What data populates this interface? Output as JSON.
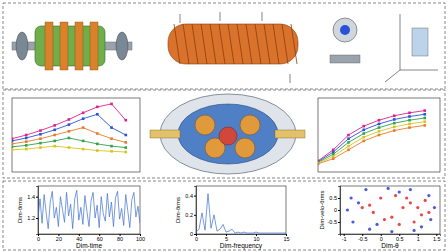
{
  "chart_data": [
    {
      "type": "line",
      "marker": "square",
      "tick_labels": false,
      "x": [
        0,
        1,
        2,
        3,
        4,
        5,
        6,
        7,
        8
      ],
      "xlim": [
        0,
        9
      ],
      "ylim": [
        0,
        1
      ],
      "series": [
        {
          "color": "#e0218a",
          "values": [
            0.45,
            0.5,
            0.56,
            0.63,
            0.71,
            0.8,
            0.88,
            0.92,
            0.7
          ]
        },
        {
          "color": "#2a52d6",
          "values": [
            0.42,
            0.46,
            0.51,
            0.57,
            0.64,
            0.72,
            0.78,
            0.6,
            0.5
          ]
        },
        {
          "color": "#e87a2a",
          "values": [
            0.38,
            0.41,
            0.45,
            0.5,
            0.55,
            0.6,
            0.52,
            0.45,
            0.4
          ]
        },
        {
          "color": "#2fa34a",
          "values": [
            0.34,
            0.36,
            0.39,
            0.42,
            0.46,
            0.42,
            0.38,
            0.35,
            0.33
          ]
        },
        {
          "color": "#d8c41c",
          "values": [
            0.3,
            0.31,
            0.33,
            0.35,
            0.33,
            0.31,
            0.29,
            0.28,
            0.27
          ]
        }
      ]
    },
    {
      "type": "line",
      "marker": "square",
      "tick_labels": false,
      "x": [
        0,
        1,
        2,
        3,
        4,
        5,
        6,
        7
      ],
      "xlim": [
        0,
        8
      ],
      "ylim": [
        0,
        1
      ],
      "series": [
        {
          "color": "#e0218a",
          "values": [
            0.15,
            0.3,
            0.5,
            0.62,
            0.7,
            0.76,
            0.8,
            0.83
          ]
        },
        {
          "color": "#2a52d6",
          "values": [
            0.14,
            0.27,
            0.45,
            0.57,
            0.65,
            0.71,
            0.75,
            0.78
          ]
        },
        {
          "color": "#2fa34a",
          "values": [
            0.13,
            0.24,
            0.4,
            0.52,
            0.6,
            0.66,
            0.7,
            0.73
          ]
        },
        {
          "color": "#d8c41c",
          "values": [
            0.12,
            0.21,
            0.35,
            0.47,
            0.55,
            0.61,
            0.65,
            0.68
          ]
        },
        {
          "color": "#e87a2a",
          "values": [
            0.11,
            0.18,
            0.3,
            0.42,
            0.5,
            0.56,
            0.6,
            0.63
          ]
        }
      ]
    },
    {
      "type": "line",
      "xlabel": "Dim-time",
      "ylabel": "Dim-θrms",
      "x": [
        0,
        2,
        4,
        6,
        8,
        10,
        12,
        14,
        16,
        18,
        20,
        22,
        24,
        26,
        28,
        30,
        32,
        34,
        36,
        38,
        40,
        42,
        44,
        46,
        48,
        50,
        52,
        54,
        56,
        58,
        60,
        62,
        64,
        66,
        68,
        70,
        72,
        74,
        76,
        78,
        80,
        82,
        84,
        86,
        88,
        90,
        92,
        94,
        96,
        98,
        100
      ],
      "xlim": [
        0,
        100
      ],
      "ylim": [
        1.05,
        1.5
      ],
      "xticks": [
        0,
        20,
        40,
        60,
        80,
        100
      ],
      "yticks": [
        1.2,
        1.4
      ],
      "series": [
        {
          "color": "#3d6fd1",
          "values": [
            1.2,
            1.38,
            1.15,
            1.42,
            1.25,
            1.1,
            1.35,
            1.45,
            1.2,
            1.3,
            1.12,
            1.4,
            1.28,
            1.16,
            1.44,
            1.22,
            1.33,
            1.1,
            1.38,
            1.46,
            1.18,
            1.3,
            1.14,
            1.41,
            1.26,
            1.12,
            1.36,
            1.44,
            1.2,
            1.32,
            1.11,
            1.4,
            1.24,
            1.17,
            1.43,
            1.21,
            1.35,
            1.12,
            1.39,
            1.45,
            1.19,
            1.29,
            1.13,
            1.42,
            1.27,
            1.11,
            1.37,
            1.44,
            1.21,
            1.31,
            1.15
          ]
        }
      ]
    },
    {
      "type": "line",
      "xlabel": "Dim-frequency",
      "ylabel": "Dim-θrms",
      "x": [
        0,
        0.5,
        1,
        1.5,
        2,
        2.5,
        3,
        3.5,
        4,
        4.5,
        5,
        5.5,
        6,
        6.5,
        7,
        7.5,
        8,
        8.5,
        9,
        9.5,
        10,
        10.5,
        11,
        11.5,
        12,
        12.5,
        13,
        13.5,
        14,
        14.5,
        15
      ],
      "xlim": [
        0,
        15
      ],
      "ylim": [
        0,
        0.5
      ],
      "xticks": [
        0,
        5,
        10,
        15
      ],
      "yticks": [
        0,
        0.2,
        0.4
      ],
      "series": [
        {
          "color": "#3d6fd1",
          "values": [
            0.02,
            0.05,
            0.22,
            0.04,
            0.42,
            0.06,
            0.2,
            0.03,
            0.05,
            0.1,
            0.02,
            0.03,
            0.05,
            0.01,
            0.02,
            0.01,
            0.02,
            0.01,
            0.01,
            0.01,
            0.02,
            0.01,
            0.01,
            0.01,
            0.01,
            0.01,
            0.01,
            0.01,
            0.01,
            0.01,
            0.01
          ]
        }
      ]
    },
    {
      "type": "scatter",
      "xlabel": "Dim-θ",
      "ylabel": "Dim-velo-θrms",
      "xlim": [
        -1.1,
        1.6
      ],
      "ylim": [
        -1,
        1
      ],
      "xticks": [
        -1,
        -0.5,
        0,
        0.5,
        1,
        1.5
      ],
      "yticks": [
        -0.5,
        0,
        0.5
      ],
      "series": [
        {
          "color": "#2a3fd6",
          "x": [
            -0.9,
            -0.8,
            -0.4,
            0.2,
            0.8,
            1.3,
            1.45,
            1.35,
            0.9,
            0.3,
            -0.3,
            -0.75,
            -0.6,
            1.1,
            0.5,
            -0.1
          ],
          "values": [
            0,
            0.5,
            0.85,
            0.9,
            0.85,
            0.6,
            0.1,
            -0.4,
            -0.85,
            -0.9,
            -0.8,
            -0.5,
            0.3,
            -0.7,
            0.75,
            -0.6
          ]
        },
        {
          "color": "#e02a2a",
          "x": [
            0.8,
            1.0,
            1.1,
            0.9,
            0.5,
            0.1,
            -0.2,
            -0.3,
            0,
            0.4,
            0.7,
            1.2,
            -0.5,
            0.3,
            0.6,
            1.3
          ],
          "values": [
            0.3,
            0.1,
            -0.2,
            -0.5,
            -0.6,
            -0.4,
            -0.1,
            0.2,
            0.5,
            0.6,
            0.5,
            0.4,
            0.1,
            -0.3,
            0.1,
            -0.1
          ]
        }
      ]
    }
  ]
}
